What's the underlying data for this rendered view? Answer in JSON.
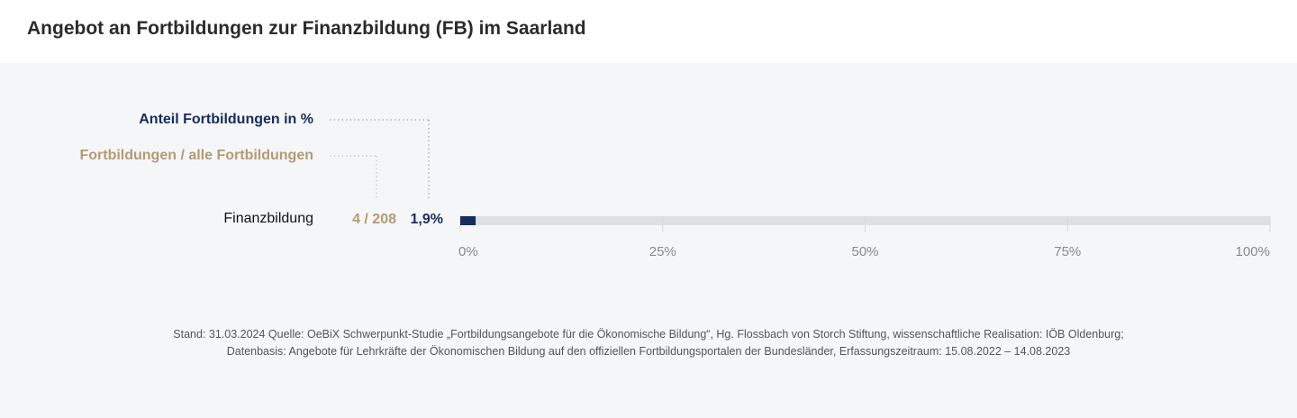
{
  "title": "Angebot an Fortbildungen zur Finanzbildung (FB)  im Saarland",
  "legend": {
    "share_label": "Anteil Fortbildungen  in %",
    "count_label": "Fortbildungen / alle Fortbildungen"
  },
  "colors": {
    "share": "#162d5e",
    "count": "#b49a74",
    "track": "#e0e0e0",
    "background": "#f5f6f8"
  },
  "chart_data": {
    "type": "bar",
    "orientation": "horizontal",
    "categories": [
      "Finanzbildung"
    ],
    "series": [
      {
        "values": [
          1.9
        ]
      }
    ],
    "count_labels": [
      "4 / 208"
    ],
    "value_labels": [
      "1,9%"
    ],
    "xlim": [
      0,
      100
    ],
    "x_ticks": [
      0,
      25,
      50,
      75,
      100
    ],
    "x_tick_labels": [
      "0%",
      "25%",
      "50%",
      "75%",
      "100%"
    ],
    "grid": false
  },
  "footer": {
    "line1": "Stand: 31.03.2024 Quelle: OeBiX Schwerpunkt-Studie „Fortbildungsangebote für die Ökonomische Bildung“, Hg. Flossbach von Storch Stiftung, wissenschaftliche Realisation: IÖB Oldenburg;",
    "line2": "Datenbasis: Angebote für Lehrkräfte der Ökonomischen Bildung auf den offiziellen Fortbildungsportalen der Bundesländer, Erfassungszeitraum: 15.08.2022 – 14.08.2023"
  }
}
